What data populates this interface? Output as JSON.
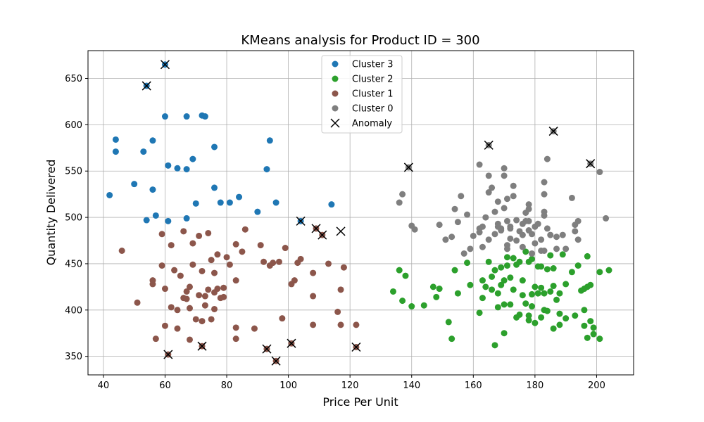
{
  "chart_data": {
    "type": "scatter",
    "title": "KMeans analysis for Product ID = 300",
    "xlabel": "Price Per Unit",
    "ylabel": "Quantity Delivered",
    "xlim": [
      35,
      212
    ],
    "ylim": [
      330,
      680
    ],
    "xticks": [
      40,
      60,
      80,
      100,
      120,
      140,
      160,
      180,
      200
    ],
    "yticks": [
      350,
      400,
      450,
      500,
      550,
      600,
      650
    ],
    "grid": true,
    "legend_position": "top-center",
    "legend": [
      "Cluster 3",
      "Cluster 2",
      "Cluster 1",
      "Cluster 0",
      "Anomaly"
    ],
    "series": [
      {
        "name": "Cluster 3",
        "color": "#1f77b4",
        "points": [
          [
            42,
            524
          ],
          [
            44,
            584
          ],
          [
            44,
            571
          ],
          [
            50,
            536
          ],
          [
            53,
            571
          ],
          [
            54,
            497
          ],
          [
            54,
            642
          ],
          [
            56,
            583
          ],
          [
            56,
            530
          ],
          [
            57,
            502
          ],
          [
            60,
            665
          ],
          [
            60,
            609
          ],
          [
            61,
            556
          ],
          [
            61,
            496
          ],
          [
            64,
            553
          ],
          [
            67,
            609
          ],
          [
            67,
            552
          ],
          [
            67,
            499
          ],
          [
            69,
            563
          ],
          [
            70,
            515
          ],
          [
            72,
            610
          ],
          [
            73,
            609
          ],
          [
            76,
            576
          ],
          [
            76,
            532
          ],
          [
            78,
            516
          ],
          [
            81,
            516
          ],
          [
            84,
            522
          ],
          [
            90,
            506
          ],
          [
            93,
            552
          ],
          [
            94,
            583
          ],
          [
            96,
            516
          ],
          [
            104,
            496
          ],
          [
            114,
            514
          ]
        ]
      },
      {
        "name": "Cluster 2",
        "color": "#2ca02c",
        "points": [
          [
            134,
            420
          ],
          [
            136,
            443
          ],
          [
            137,
            410
          ],
          [
            138,
            437
          ],
          [
            140,
            404
          ],
          [
            144,
            405
          ],
          [
            147,
            425
          ],
          [
            148,
            414
          ],
          [
            149,
            423
          ],
          [
            152,
            387
          ],
          [
            153,
            369
          ],
          [
            154,
            443
          ],
          [
            155,
            418
          ],
          [
            158,
            451
          ],
          [
            159,
            427
          ],
          [
            162,
            397
          ],
          [
            163,
            432
          ],
          [
            163,
            413
          ],
          [
            164,
            425
          ],
          [
            165,
            452
          ],
          [
            166,
            422
          ],
          [
            166,
            436
          ],
          [
            167,
            362
          ],
          [
            167,
            443
          ],
          [
            168,
            418
          ],
          [
            168,
            403
          ],
          [
            169,
            427
          ],
          [
            169,
            446
          ],
          [
            170,
            406
          ],
          [
            170,
            432
          ],
          [
            170,
            375
          ],
          [
            171,
            457
          ],
          [
            171,
            448
          ],
          [
            172,
            406
          ],
          [
            172,
            435
          ],
          [
            173,
            456
          ],
          [
            173,
            422
          ],
          [
            174,
            392
          ],
          [
            174,
            449
          ],
          [
            175,
            395
          ],
          [
            175,
            452
          ],
          [
            176,
            432
          ],
          [
            176,
            416
          ],
          [
            177,
            463
          ],
          [
            177,
            407
          ],
          [
            178,
            394
          ],
          [
            178,
            452
          ],
          [
            178,
            389
          ],
          [
            179,
            417
          ],
          [
            179,
            404
          ],
          [
            179,
            455
          ],
          [
            180,
            386
          ],
          [
            180,
            425
          ],
          [
            181,
            447
          ],
          [
            181,
            418
          ],
          [
            182,
            392
          ],
          [
            182,
            447
          ],
          [
            182,
            424
          ],
          [
            183,
            400
          ],
          [
            183,
            418
          ],
          [
            184,
            444
          ],
          [
            184,
            399
          ],
          [
            185,
            459
          ],
          [
            185,
            420
          ],
          [
            186,
            380
          ],
          [
            186,
            445
          ],
          [
            186,
            426
          ],
          [
            187,
            411
          ],
          [
            188,
            384
          ],
          [
            188,
            396
          ],
          [
            188,
            418
          ],
          [
            189,
            460
          ],
          [
            190,
            391
          ],
          [
            190,
            428
          ],
          [
            192,
            441
          ],
          [
            193,
            394
          ],
          [
            194,
            448
          ],
          [
            195,
            421
          ],
          [
            196,
            383
          ],
          [
            196,
            400
          ],
          [
            196,
            423
          ],
          [
            197,
            370
          ],
          [
            197,
            425
          ],
          [
            197,
            458
          ],
          [
            198,
            388
          ],
          [
            198,
            427
          ],
          [
            199,
            374
          ],
          [
            199,
            381
          ],
          [
            201,
            369
          ],
          [
            201,
            441
          ],
          [
            204,
            443
          ]
        ]
      },
      {
        "name": "Cluster 1",
        "color": "#8c564b",
        "points": [
          [
            46,
            464
          ],
          [
            51,
            408
          ],
          [
            56,
            432
          ],
          [
            56,
            428
          ],
          [
            57,
            369
          ],
          [
            59,
            448
          ],
          [
            59,
            482
          ],
          [
            60,
            423
          ],
          [
            60,
            383
          ],
          [
            61,
            352
          ],
          [
            62,
            470
          ],
          [
            62,
            403
          ],
          [
            63,
            443
          ],
          [
            64,
            400
          ],
          [
            64,
            380
          ],
          [
            65,
            437
          ],
          [
            66,
            413
          ],
          [
            66,
            485
          ],
          [
            67,
            420
          ],
          [
            67,
            412
          ],
          [
            68,
            425
          ],
          [
            68,
            368
          ],
          [
            68,
            402
          ],
          [
            69,
            449
          ],
          [
            69,
            472
          ],
          [
            70,
            390
          ],
          [
            71,
            480
          ],
          [
            71,
            416
          ],
          [
            72,
            442
          ],
          [
            72,
            388
          ],
          [
            72,
            361
          ],
          [
            73,
            405
          ],
          [
            73,
            415
          ],
          [
            74,
            422
          ],
          [
            74,
            483
          ],
          [
            75,
            390
          ],
          [
            75,
            454
          ],
          [
            76,
            440
          ],
          [
            76,
            401
          ],
          [
            76,
            419
          ],
          [
            77,
            460
          ],
          [
            77,
            423
          ],
          [
            78,
            413
          ],
          [
            79,
            424
          ],
          [
            79,
            414
          ],
          [
            80,
            457
          ],
          [
            81,
            449
          ],
          [
            83,
            432
          ],
          [
            83,
            471
          ],
          [
            83,
            381
          ],
          [
            83,
            369
          ],
          [
            85,
            463
          ],
          [
            86,
            487
          ],
          [
            89,
            380
          ],
          [
            91,
            470
          ],
          [
            92,
            452
          ],
          [
            93,
            358
          ],
          [
            94,
            448
          ],
          [
            95,
            451
          ],
          [
            96,
            345
          ],
          [
            97,
            452
          ],
          [
            98,
            391
          ],
          [
            99,
            467
          ],
          [
            101,
            428
          ],
          [
            101,
            364
          ],
          [
            102,
            432
          ],
          [
            103,
            451
          ],
          [
            104,
            455
          ],
          [
            108,
            440
          ],
          [
            108,
            415
          ],
          [
            108,
            384
          ],
          [
            109,
            488
          ],
          [
            111,
            481
          ],
          [
            113,
            450
          ],
          [
            116,
            398
          ],
          [
            117,
            384
          ],
          [
            117,
            422
          ],
          [
            118,
            446
          ],
          [
            122,
            360
          ],
          [
            122,
            384
          ]
        ]
      },
      {
        "name": "Cluster 0",
        "color": "#7f7f7f",
        "points": [
          [
            136,
            516
          ],
          [
            137,
            525
          ],
          [
            139,
            554
          ],
          [
            140,
            491
          ],
          [
            141,
            487
          ],
          [
            149,
            492
          ],
          [
            151,
            476
          ],
          [
            153,
            479
          ],
          [
            154,
            509
          ],
          [
            155,
            495
          ],
          [
            156,
            523
          ],
          [
            157,
            461
          ],
          [
            158,
            503
          ],
          [
            159,
            466
          ],
          [
            160,
            480
          ],
          [
            162,
            484
          ],
          [
            162,
            557
          ],
          [
            162,
            488
          ],
          [
            163,
            490
          ],
          [
            163,
            468
          ],
          [
            164,
            500
          ],
          [
            165,
            476
          ],
          [
            165,
            578
          ],
          [
            165,
            527
          ],
          [
            165,
            545
          ],
          [
            166,
            532
          ],
          [
            167,
            506
          ],
          [
            167,
            482
          ],
          [
            168,
            493
          ],
          [
            168,
            517
          ],
          [
            168,
            490
          ],
          [
            169,
            488
          ],
          [
            169,
            486
          ],
          [
            170,
            545
          ],
          [
            170,
            553
          ],
          [
            170,
            510
          ],
          [
            171,
            520
          ],
          [
            171,
            466
          ],
          [
            171,
            470
          ],
          [
            171,
            496
          ],
          [
            172,
            488
          ],
          [
            172,
            490
          ],
          [
            172,
            477
          ],
          [
            173,
            534
          ],
          [
            173,
            523
          ],
          [
            174,
            497
          ],
          [
            174,
            475
          ],
          [
            175,
            485
          ],
          [
            176,
            468
          ],
          [
            176,
            481
          ],
          [
            176,
            493
          ],
          [
            177,
            496
          ],
          [
            177,
            505
          ],
          [
            178,
            509
          ],
          [
            178,
            514
          ],
          [
            178,
            496
          ],
          [
            178,
            486
          ],
          [
            179,
            461
          ],
          [
            179,
            482
          ],
          [
            180,
            490
          ],
          [
            180,
            472
          ],
          [
            181,
            493
          ],
          [
            182,
            464
          ],
          [
            182,
            476
          ],
          [
            183,
            538
          ],
          [
            183,
            506
          ],
          [
            183,
            502
          ],
          [
            183,
            464
          ],
          [
            183,
            525
          ],
          [
            184,
            563
          ],
          [
            184,
            488
          ],
          [
            185,
            481
          ],
          [
            186,
            593
          ],
          [
            187,
            479
          ],
          [
            187,
            466
          ],
          [
            189,
            481
          ],
          [
            190,
            466
          ],
          [
            192,
            521
          ],
          [
            193,
            492
          ],
          [
            193,
            485
          ],
          [
            194,
            476
          ],
          [
            194,
            496
          ],
          [
            198,
            558
          ],
          [
            201,
            549
          ],
          [
            203,
            499
          ]
        ]
      }
    ],
    "anomalies": {
      "name": "Anomaly",
      "color": "#000000",
      "points": [
        [
          54,
          642
        ],
        [
          60,
          665
        ],
        [
          61,
          352
        ],
        [
          72,
          361
        ],
        [
          93,
          358
        ],
        [
          96,
          345
        ],
        [
          101,
          364
        ],
        [
          104,
          496
        ],
        [
          109,
          488
        ],
        [
          111,
          481
        ],
        [
          117,
          485
        ],
        [
          122,
          360
        ],
        [
          139,
          554
        ],
        [
          165,
          578
        ],
        [
          186,
          593
        ],
        [
          198,
          558
        ]
      ]
    }
  }
}
